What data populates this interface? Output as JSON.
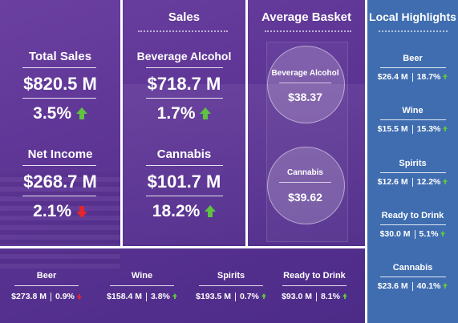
{
  "sales_header": "Sales",
  "basket_header": "Average Basket",
  "local_header": "Local Highlights",
  "total_sales": {
    "label": "Total Sales",
    "value": "$820.5 M",
    "change": "3.5%",
    "direction": "up"
  },
  "net_income": {
    "label": "Net Income",
    "value": "$268.7 M",
    "change": "2.1%",
    "direction": "down"
  },
  "beverage_alcohol": {
    "label": "Beverage Alcohol",
    "value": "$718.7 M",
    "change": "1.7%",
    "direction": "up"
  },
  "cannabis": {
    "label": "Cannabis",
    "value": "$101.7 M",
    "change": "18.2%",
    "direction": "up"
  },
  "basket": [
    {
      "label": "Beverage Alcohol",
      "value": "$38.37"
    },
    {
      "label": "Cannabis",
      "value": "$39.62"
    }
  ],
  "local": [
    {
      "label": "Beer",
      "value": "$26.4 M",
      "change": "18.7%",
      "direction": "up"
    },
    {
      "label": "Wine",
      "value": "$15.5 M",
      "change": "15.3%",
      "direction": "up"
    },
    {
      "label": "Spirits",
      "value": "$12.6 M",
      "change": "12.2%",
      "direction": "up"
    },
    {
      "label": "Ready to Drink",
      "value": "$30.0 M",
      "change": "5.1%",
      "direction": "up"
    },
    {
      "label": "Cannabis",
      "value": "$23.6 M",
      "change": "40.1%",
      "direction": "up"
    }
  ],
  "bottom": [
    {
      "label": "Beer",
      "value": "$273.8 M",
      "change": "0.9%",
      "direction": "down"
    },
    {
      "label": "Wine",
      "value": "$158.4 M",
      "change": "3.8%",
      "direction": "up"
    },
    {
      "label": "Spirits",
      "value": "$193.5 M",
      "change": "0.7%",
      "direction": "up"
    },
    {
      "label": "Ready to Drink",
      "value": "$93.0 M",
      "change": "8.1%",
      "direction": "up"
    }
  ],
  "colors": {
    "up": "#5fc241",
    "down": "#e3262d",
    "local_bg": "#3f6db0",
    "background": "#5b3393"
  }
}
